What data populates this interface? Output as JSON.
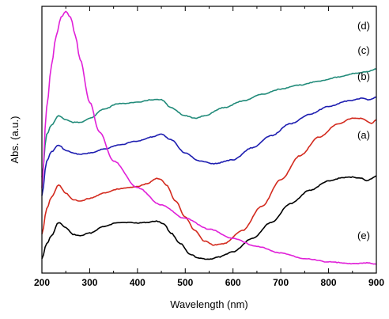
{
  "chart_data": {
    "type": "line",
    "title": "",
    "xlabel": "Wavelength (nm)",
    "ylabel": "Abs. (a.u.)",
    "xlim": [
      200,
      900
    ],
    "ylim": [
      0,
      10
    ],
    "x_ticks": [
      200,
      300,
      400,
      500,
      600,
      700,
      800,
      900
    ],
    "y_ticks_labeled": false,
    "grid": false,
    "legend": "inline labels on right",
    "series": [
      {
        "name": "(a)",
        "color": "#000000",
        "x": [
          200,
          210,
          220,
          235,
          250,
          265,
          280,
          300,
          330,
          360,
          380,
          400,
          420,
          440,
          455,
          470,
          490,
          510,
          530,
          550,
          570,
          600,
          640,
          680,
          720,
          760,
          800,
          830,
          850,
          870,
          880,
          890,
          900
        ],
        "y": [
          0.55,
          1.1,
          1.4,
          1.9,
          1.7,
          1.45,
          1.4,
          1.5,
          1.75,
          1.9,
          1.9,
          1.88,
          1.9,
          1.95,
          1.85,
          1.5,
          1.1,
          0.7,
          0.55,
          0.52,
          0.6,
          0.8,
          1.3,
          1.9,
          2.6,
          3.1,
          3.45,
          3.58,
          3.6,
          3.55,
          3.45,
          3.55,
          3.65
        ]
      },
      {
        "name": "(b)",
        "color": "#d32a1e",
        "x": [
          200,
          210,
          220,
          235,
          250,
          265,
          280,
          300,
          330,
          360,
          380,
          400,
          420,
          440,
          450,
          460,
          480,
          500,
          520,
          540,
          560,
          580,
          620,
          660,
          700,
          740,
          780,
          820,
          850,
          870,
          880,
          890,
          900
        ],
        "y": [
          1.45,
          2.4,
          2.85,
          3.3,
          3.0,
          2.75,
          2.7,
          2.8,
          3.0,
          3.15,
          3.2,
          3.25,
          3.35,
          3.55,
          3.5,
          3.3,
          2.7,
          2.1,
          1.6,
          1.2,
          1.05,
          1.1,
          1.6,
          2.5,
          3.5,
          4.4,
          5.1,
          5.6,
          5.8,
          5.8,
          5.7,
          5.6,
          5.75
        ]
      },
      {
        "name": "(c)",
        "color": "#1d1db0",
        "x": [
          200,
          210,
          220,
          235,
          250,
          265,
          280,
          300,
          330,
          360,
          400,
          430,
          450,
          470,
          500,
          530,
          560,
          600,
          640,
          680,
          720,
          760,
          800,
          840,
          870,
          885,
          900
        ],
        "y": [
          2.9,
          4.2,
          4.55,
          4.8,
          4.6,
          4.5,
          4.45,
          4.5,
          4.65,
          4.8,
          4.95,
          5.1,
          5.2,
          5.0,
          4.5,
          4.2,
          4.1,
          4.25,
          4.7,
          5.15,
          5.6,
          5.95,
          6.25,
          6.45,
          6.55,
          6.5,
          6.6
        ]
      },
      {
        "name": "(d)",
        "color": "#228b7a",
        "x": [
          200,
          210,
          220,
          235,
          250,
          265,
          280,
          300,
          330,
          360,
          400,
          430,
          450,
          470,
          500,
          520,
          540,
          580,
          620,
          660,
          700,
          740,
          780,
          820,
          860,
          880,
          900
        ],
        "y": [
          3.6,
          5.2,
          5.55,
          5.9,
          5.75,
          5.65,
          5.65,
          5.8,
          6.15,
          6.35,
          6.4,
          6.5,
          6.5,
          6.2,
          5.9,
          5.8,
          5.9,
          6.2,
          6.45,
          6.7,
          6.9,
          7.05,
          7.2,
          7.35,
          7.5,
          7.55,
          7.65
        ]
      },
      {
        "name": "(e)",
        "color": "#e020d8",
        "x": [
          200,
          210,
          220,
          230,
          240,
          250,
          260,
          270,
          280,
          300,
          320,
          350,
          400,
          450,
          500,
          550,
          600,
          650,
          700,
          750,
          800,
          850,
          880,
          900
        ],
        "y": [
          3.2,
          6.2,
          7.8,
          8.9,
          9.6,
          9.8,
          9.6,
          8.9,
          8.0,
          6.4,
          5.3,
          4.2,
          3.2,
          2.55,
          2.05,
          1.65,
          1.3,
          1.0,
          0.75,
          0.55,
          0.42,
          0.35,
          0.38,
          0.33
        ]
      }
    ]
  }
}
